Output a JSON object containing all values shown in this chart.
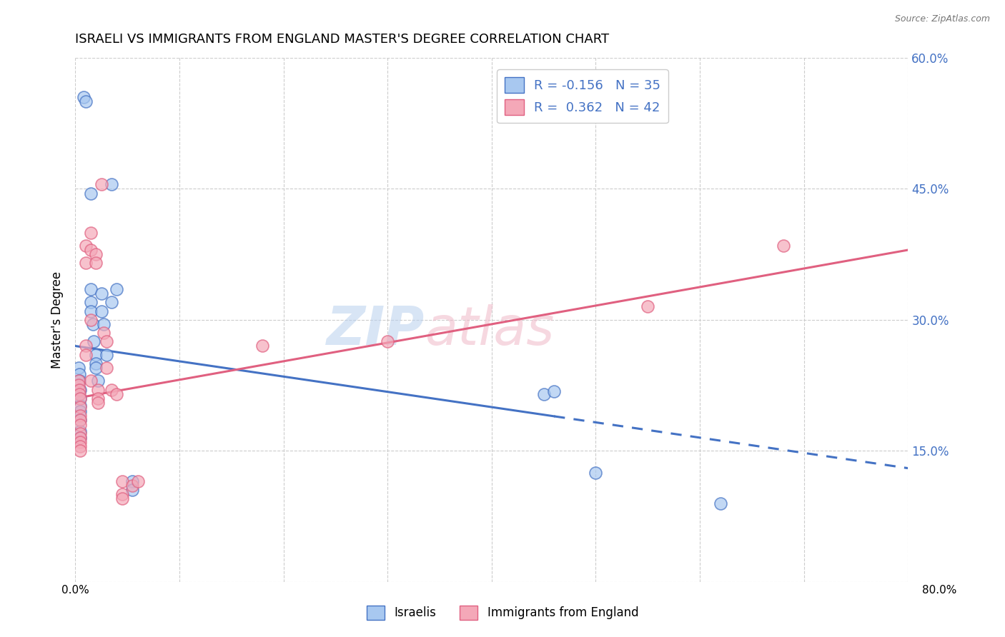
{
  "title": "ISRAELI VS IMMIGRANTS FROM ENGLAND MASTER'S DEGREE CORRELATION CHART",
  "source": "Source: ZipAtlas.com",
  "ylabel": "Master's Degree",
  "xlim": [
    0.0,
    80.0
  ],
  "ylim": [
    0.0,
    60.0
  ],
  "yticks": [
    0.0,
    15.0,
    30.0,
    45.0,
    60.0
  ],
  "xticks": [
    0.0,
    10.0,
    20.0,
    30.0,
    40.0,
    50.0,
    60.0,
    70.0,
    80.0
  ],
  "blue_R": -0.156,
  "blue_N": 35,
  "pink_R": 0.362,
  "pink_N": 42,
  "blue_fill": "#a8c8f0",
  "pink_fill": "#f4a8b8",
  "blue_edge": "#4472c4",
  "pink_edge": "#e06080",
  "blue_line": "#4472c4",
  "pink_line": "#e06080",
  "legend_label_blue": "Israelis",
  "legend_label_pink": "Immigrants from England",
  "blue_line_solid_end_x": 46.0,
  "blue_line_x0": 0.0,
  "blue_line_y0": 27.0,
  "blue_line_x1": 80.0,
  "blue_line_y1": 13.0,
  "pink_line_x0": 0.0,
  "pink_line_y0": 21.0,
  "pink_line_x1": 80.0,
  "pink_line_y1": 38.0,
  "blue_dots": [
    [
      0.3,
      24.5
    ],
    [
      0.4,
      23.8
    ],
    [
      0.4,
      23.0
    ],
    [
      0.5,
      22.0
    ],
    [
      0.5,
      21.0
    ],
    [
      0.5,
      20.2
    ],
    [
      0.5,
      19.5
    ],
    [
      0.5,
      18.5
    ],
    [
      0.5,
      17.2
    ],
    [
      0.5,
      16.5
    ],
    [
      0.8,
      55.5
    ],
    [
      1.0,
      55.0
    ],
    [
      1.5,
      44.5
    ],
    [
      1.5,
      33.5
    ],
    [
      1.5,
      32.0
    ],
    [
      1.5,
      31.0
    ],
    [
      1.7,
      29.5
    ],
    [
      1.8,
      27.5
    ],
    [
      2.0,
      26.0
    ],
    [
      2.0,
      25.0
    ],
    [
      2.0,
      24.5
    ],
    [
      2.2,
      23.0
    ],
    [
      2.5,
      33.0
    ],
    [
      2.5,
      31.0
    ],
    [
      2.7,
      29.5
    ],
    [
      3.0,
      26.0
    ],
    [
      3.5,
      45.5
    ],
    [
      3.5,
      32.0
    ],
    [
      4.0,
      33.5
    ],
    [
      5.5,
      11.5
    ],
    [
      5.5,
      10.5
    ],
    [
      45.0,
      21.5
    ],
    [
      46.0,
      21.8
    ],
    [
      50.0,
      12.5
    ],
    [
      62.0,
      9.0
    ]
  ],
  "pink_dots": [
    [
      0.3,
      23.0
    ],
    [
      0.3,
      22.5
    ],
    [
      0.4,
      22.0
    ],
    [
      0.4,
      21.5
    ],
    [
      0.5,
      21.0
    ],
    [
      0.5,
      20.0
    ],
    [
      0.5,
      19.0
    ],
    [
      0.5,
      18.5
    ],
    [
      0.5,
      18.0
    ],
    [
      0.5,
      17.0
    ],
    [
      0.5,
      16.5
    ],
    [
      0.5,
      16.0
    ],
    [
      0.5,
      15.5
    ],
    [
      0.5,
      15.0
    ],
    [
      1.0,
      38.5
    ],
    [
      1.0,
      36.5
    ],
    [
      1.0,
      27.0
    ],
    [
      1.0,
      26.0
    ],
    [
      1.5,
      40.0
    ],
    [
      1.5,
      38.0
    ],
    [
      1.5,
      30.0
    ],
    [
      1.5,
      23.0
    ],
    [
      2.0,
      37.5
    ],
    [
      2.0,
      36.5
    ],
    [
      2.2,
      22.0
    ],
    [
      2.2,
      21.0
    ],
    [
      2.2,
      20.5
    ],
    [
      2.5,
      45.5
    ],
    [
      2.7,
      28.5
    ],
    [
      3.0,
      27.5
    ],
    [
      3.0,
      24.5
    ],
    [
      3.5,
      22.0
    ],
    [
      4.0,
      21.5
    ],
    [
      4.5,
      11.5
    ],
    [
      4.5,
      10.0
    ],
    [
      4.5,
      9.5
    ],
    [
      5.5,
      11.0
    ],
    [
      6.0,
      11.5
    ],
    [
      55.0,
      31.5
    ],
    [
      68.0,
      38.5
    ],
    [
      30.0,
      27.5
    ],
    [
      18.0,
      27.0
    ]
  ]
}
